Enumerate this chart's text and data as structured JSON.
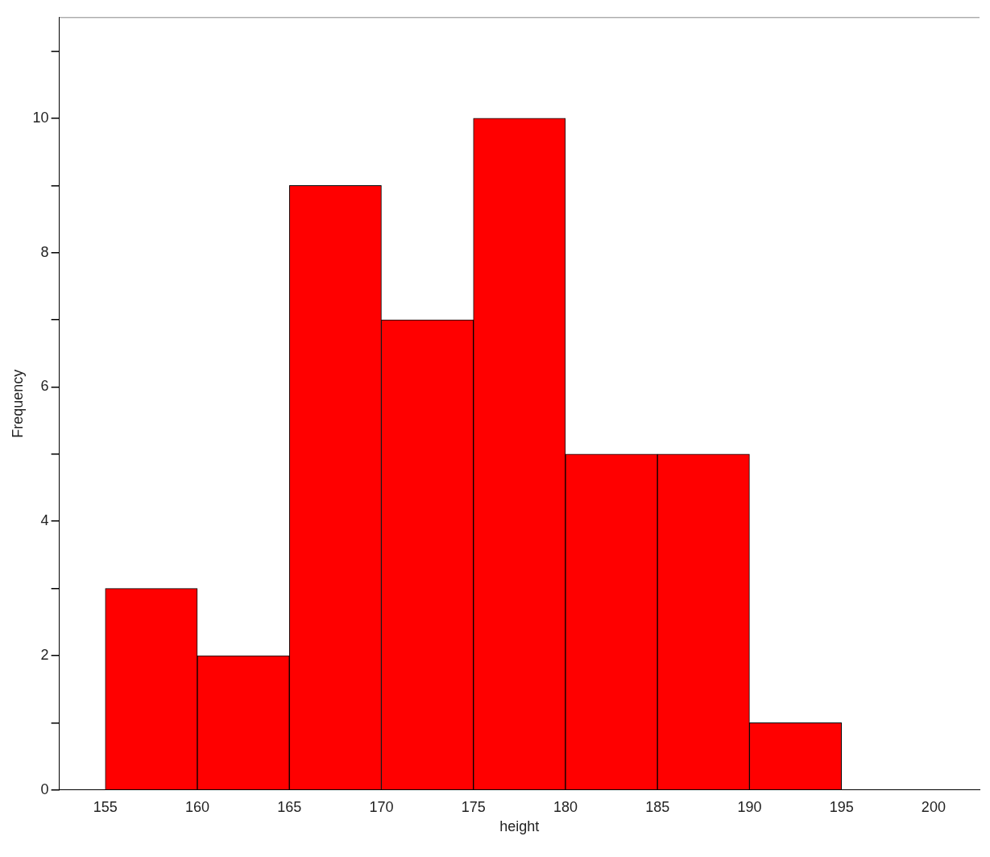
{
  "chart_data": {
    "type": "histogram",
    "xlabel": "height",
    "ylabel": "Frequency",
    "bins": [
      155,
      160,
      165,
      170,
      175,
      180,
      185,
      190,
      195
    ],
    "values": [
      3,
      2,
      9,
      7,
      10,
      5,
      5,
      1
    ],
    "color": "#ff0000",
    "xlim": [
      152.5,
      202.5
    ],
    "xticks": [
      155,
      160,
      165,
      170,
      175,
      180,
      185,
      190,
      195,
      200
    ],
    "ylim": [
      0,
      11.5
    ],
    "yticks": [
      0,
      {
        "value": 1,
        "label": null
      },
      2,
      {
        "value": 3,
        "label": null
      },
      4,
      {
        "value": 5,
        "label": null
      },
      6,
      {
        "value": 7,
        "label": null
      },
      8,
      {
        "value": 9,
        "label": null
      },
      10,
      {
        "value": 11,
        "label": null
      }
    ],
    "grid": false,
    "legend": false
  }
}
